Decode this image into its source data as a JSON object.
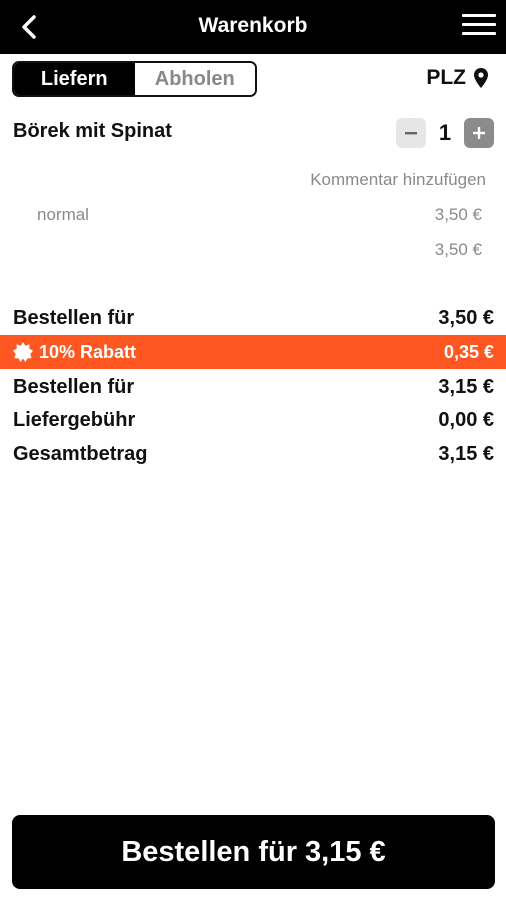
{
  "header": {
    "title": "Warenkorb",
    "back_icon": "chevron-left-icon",
    "menu_icon": "hamburger-menu-icon"
  },
  "mode_toggle": {
    "options": [
      {
        "label": "Liefern",
        "active": true
      },
      {
        "label": "Abholen",
        "active": false
      }
    ]
  },
  "location": {
    "label": "PLZ",
    "icon": "map-pin-icon"
  },
  "cart": {
    "items": [
      {
        "name": "Börek mit Spinat",
        "quantity": "1",
        "comment_link": "Kommentar hinzufügen",
        "variant": "normal",
        "variant_price": "3,50 €",
        "item_total": "3,50 €"
      }
    ]
  },
  "summary": {
    "subtotal": {
      "label": "Bestellen für",
      "value": "3,50 €"
    },
    "discount": {
      "label": "10% Rabatt",
      "value": "0,35 €",
      "color": "#fe5722",
      "icon": "badge-icon"
    },
    "discounted_total": {
      "label": "Bestellen für",
      "value": "3,15 €"
    },
    "delivery_fee": {
      "label": "Liefergebühr",
      "value": "0,00 €"
    },
    "grand_total": {
      "label": "Gesamtbetrag",
      "value": "3,15 €"
    }
  },
  "order_button": {
    "label": "Bestellen für 3,15 €"
  }
}
